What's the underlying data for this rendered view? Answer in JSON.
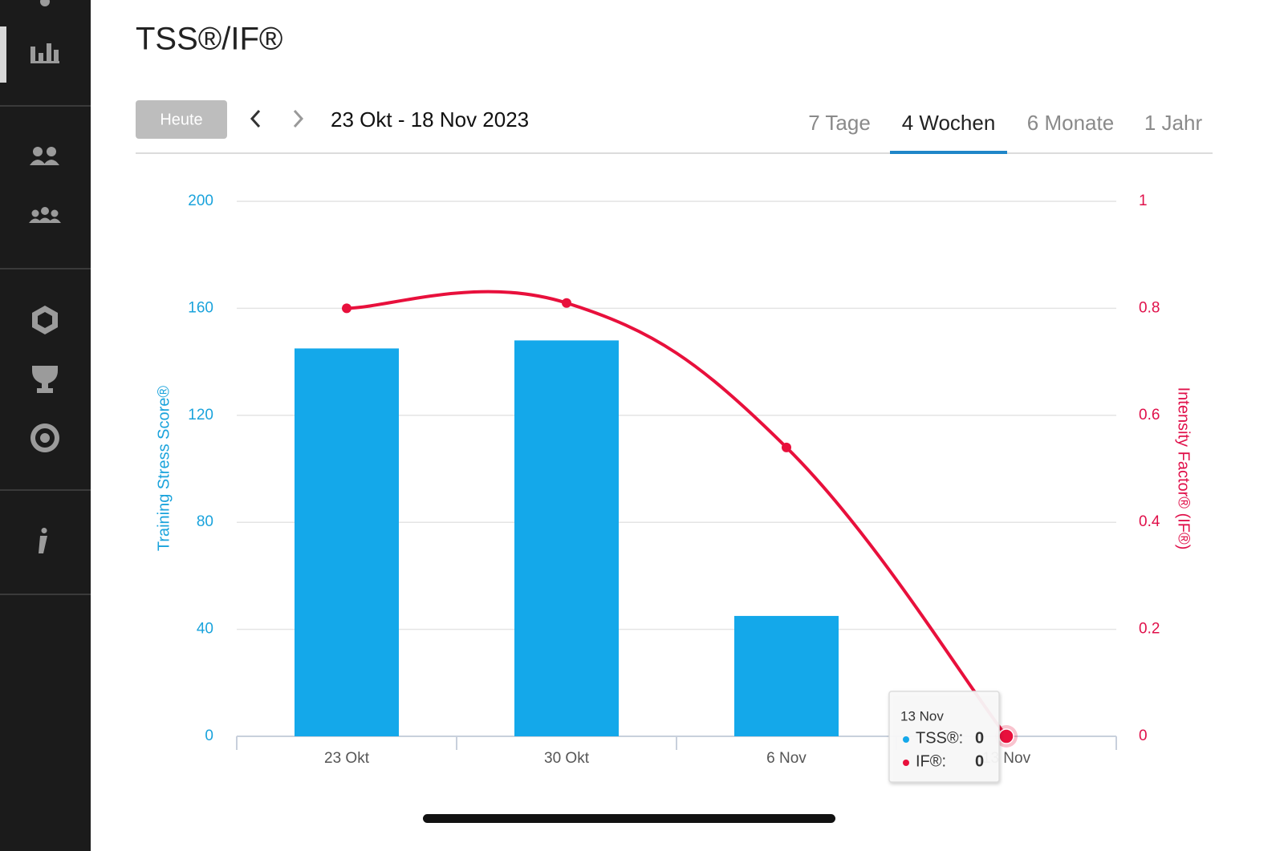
{
  "header": {
    "title": "TSS®/IF®"
  },
  "toolbar": {
    "today_button": "Heute",
    "date_range": "23 Okt - 18 Nov 2023",
    "tabs": [
      "7 Tage",
      "4 Wochen",
      "6 Monate",
      "1 Jahr"
    ],
    "active_tab": 1
  },
  "chart_data": {
    "type": "bar",
    "categories": [
      "23 Okt",
      "30 Okt",
      "6 Nov",
      "13 Nov"
    ],
    "ylabel": "Training Stress Score®",
    "y2label": "Intensity Factor® (IF®)",
    "ylim": [
      0,
      200
    ],
    "yticks": [
      0,
      40,
      80,
      120,
      160,
      200
    ],
    "y2lim": [
      0,
      1
    ],
    "y2ticks": [
      0,
      0.2,
      0.4,
      0.6,
      0.8,
      1
    ],
    "grid": true,
    "series": [
      {
        "type": "bar",
        "color": "#14a8ea",
        "values": [
          145,
          148,
          45,
          0
        ]
      },
      {
        "type": "line",
        "axis": "y2",
        "color": "#e8103c",
        "values": [
          0.8,
          0.81,
          0.54,
          0
        ]
      }
    ]
  },
  "tooltip": {
    "index": 3,
    "labels": [
      "TSS®:",
      "IF®:"
    ]
  }
}
